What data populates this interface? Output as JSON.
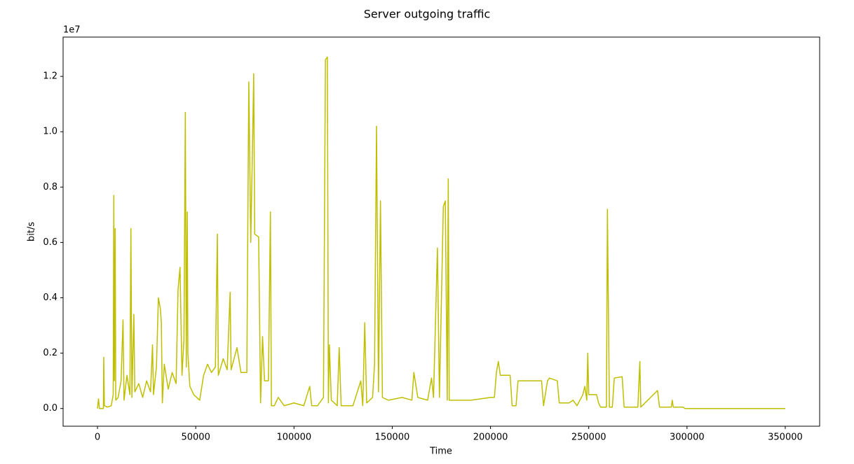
{
  "chart_data": {
    "type": "line",
    "title": "Server outgoing traffic",
    "xlabel": "Time",
    "ylabel": "bit/s",
    "y_offset_label": "1e7",
    "xlim": [
      -17500,
      367500
    ],
    "ylim": [
      -640000,
      13420000
    ],
    "xticks": [
      0,
      50000,
      100000,
      150000,
      200000,
      250000,
      300000,
      350000
    ],
    "yticks": [
      {
        "value": 0,
        "label": "0.0"
      },
      {
        "value": 2000000,
        "label": "0.2"
      },
      {
        "value": 4000000,
        "label": "0.4"
      },
      {
        "value": 6000000,
        "label": "0.6"
      },
      {
        "value": 8000000,
        "label": "0.8"
      },
      {
        "value": 10000000,
        "label": "1.0"
      },
      {
        "value": 12000000,
        "label": "1.2"
      }
    ],
    "grid": false,
    "series": [
      {
        "color": "#bfbf00",
        "x": [
          0,
          500,
          1000,
          3000,
          3200,
          3500,
          5000,
          7000,
          8000,
          8300,
          8600,
          9000,
          9300,
          10500,
          12000,
          13000,
          13500,
          15000,
          16500,
          17000,
          17500,
          18500,
          19000,
          21000,
          23000,
          25000,
          27000,
          28000,
          28500,
          30000,
          31000,
          32000,
          32500,
          33000,
          34000,
          36000,
          38000,
          40000,
          41000,
          42000,
          43000,
          44000,
          44700,
          45200,
          45700,
          46000,
          47000,
          49000,
          52000,
          54000,
          56000,
          58000,
          60000,
          61000,
          61500,
          64000,
          66000,
          67500,
          68000,
          71000,
          73000,
          76000,
          77000,
          78000,
          79000,
          79500,
          80000,
          82000,
          83000,
          84000,
          85000,
          87000,
          88000,
          88500,
          90000,
          92000,
          95000,
          100000,
          105000,
          108000,
          109000,
          112000,
          115000,
          116000,
          117000,
          117500,
          118000,
          119000,
          122000,
          123000,
          124000,
          130000,
          134000,
          135000,
          136000,
          137000,
          140000,
          141000,
          142000,
          143000,
          144000,
          145000,
          148000,
          155000,
          160000,
          161000,
          163000,
          168000,
          170000,
          171000,
          173000,
          174000,
          176000,
          177000,
          178000,
          178500,
          179000,
          190000,
          200000,
          202000,
          203000,
          204000,
          205000,
          210000,
          211000,
          213000,
          214000,
          226000,
          227000,
          229000,
          230000,
          234000,
          235000,
          240000,
          242000,
          244000,
          247000,
          248000,
          249000,
          249500,
          250000,
          254000,
          255000,
          256000,
          259000,
          259500,
          260500,
          262000,
          263000,
          267000,
          268000,
          275000,
          276000,
          276500,
          285000,
          286000,
          292000,
          292500,
          293000,
          298000,
          299000,
          350000
        ],
        "values": [
          0,
          350000,
          0,
          0,
          1850000,
          100000,
          50000,
          100000,
          500000,
          7700000,
          1000000,
          6500000,
          300000,
          400000,
          1000000,
          3200000,
          300000,
          1200000,
          500000,
          6500000,
          400000,
          3400000,
          600000,
          900000,
          400000,
          1000000,
          600000,
          2300000,
          500000,
          1500000,
          4000000,
          3600000,
          3100000,
          200000,
          1600000,
          700000,
          1300000,
          900000,
          4300000,
          5100000,
          1200000,
          2500000,
          10700000,
          1500000,
          7100000,
          2000000,
          800000,
          500000,
          300000,
          1200000,
          1600000,
          1300000,
          1500000,
          6300000,
          1200000,
          1800000,
          1400000,
          4200000,
          1400000,
          2200000,
          1300000,
          1300000,
          11800000,
          6000000,
          9900000,
          12100000,
          6300000,
          6200000,
          200000,
          2600000,
          1000000,
          1000000,
          7100000,
          100000,
          100000,
          400000,
          100000,
          200000,
          100000,
          800000,
          100000,
          100000,
          400000,
          12600000,
          12700000,
          200000,
          2300000,
          300000,
          100000,
          2200000,
          100000,
          100000,
          1000000,
          100000,
          3100000,
          200000,
          400000,
          1600000,
          10200000,
          600000,
          7500000,
          400000,
          300000,
          400000,
          300000,
          1300000,
          400000,
          300000,
          1100000,
          400000,
          5800000,
          400000,
          7300000,
          7500000,
          300000,
          8300000,
          300000,
          300000,
          400000,
          400000,
          1300000,
          1700000,
          1200000,
          1200000,
          100000,
          100000,
          1000000,
          1000000,
          100000,
          1000000,
          1100000,
          1000000,
          200000,
          200000,
          300000,
          100000,
          500000,
          800000,
          300000,
          2000000,
          500000,
          500000,
          200000,
          50000,
          50000,
          7200000,
          50000,
          50000,
          1100000,
          1150000,
          50000,
          50000,
          1700000,
          50000,
          650000,
          50000,
          50000,
          300000,
          50000,
          50000,
          0,
          0
        ]
      }
    ]
  }
}
